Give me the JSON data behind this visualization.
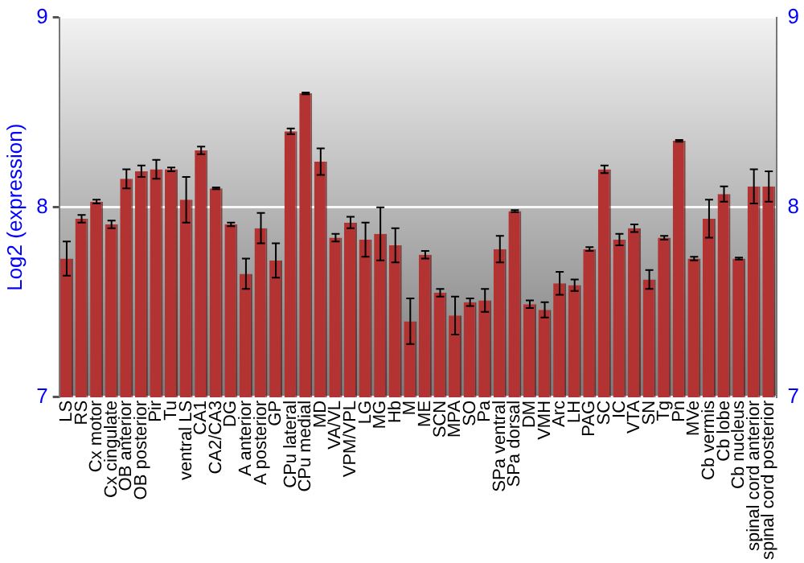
{
  "chart_data": {
    "type": "bar",
    "ylabel": "Log2 (expression)",
    "categories": [
      "LS",
      "RS",
      "Cx motor",
      "Cx cingulate",
      "OB anterior",
      "OB posterior",
      "Pir",
      "Tu",
      "ventral LS",
      "CA1",
      "CA2/CA3",
      "DG",
      "A anterior",
      "A posterior",
      "GP",
      "CPu lateral",
      "CPu medial",
      "MD",
      "VA/VL",
      "VPM/VPL",
      "LG",
      "MG",
      "Hb",
      "M",
      "ME",
      "SCN",
      "MPA",
      "SO",
      "Pa",
      "SPa ventral",
      "SPa dorsal",
      "DM",
      "VMH",
      "Arc",
      "LH",
      "PAG",
      "SC",
      "IC",
      "VTA",
      "SN",
      "Tg",
      "Pn",
      "MVe",
      "Cb vermis",
      "Cb lobe",
      "Cb nucleus",
      "spinal cord anterior",
      "spinal cord posterior"
    ],
    "values": [
      7.73,
      7.94,
      8.03,
      7.91,
      8.15,
      8.19,
      8.2,
      8.2,
      8.04,
      8.3,
      8.1,
      7.91,
      7.65,
      7.89,
      7.72,
      8.4,
      8.6,
      8.24,
      7.84,
      7.92,
      7.83,
      7.86,
      7.8,
      7.4,
      7.75,
      7.55,
      7.43,
      7.5,
      7.51,
      7.78,
      7.98,
      7.49,
      7.46,
      7.6,
      7.59,
      7.78,
      8.2,
      7.83,
      7.89,
      7.62,
      7.84,
      8.35,
      7.73,
      7.94,
      8.07,
      7.73,
      8.11,
      8.11
    ],
    "errors": [
      0.09,
      0.02,
      0.01,
      0.02,
      0.05,
      0.03,
      0.05,
      0.01,
      0.12,
      0.02,
      0.005,
      0.01,
      0.08,
      0.08,
      0.09,
      0.015,
      0.005,
      0.07,
      0.02,
      0.03,
      0.09,
      0.14,
      0.09,
      0.12,
      0.02,
      0.02,
      0.1,
      0.02,
      0.06,
      0.07,
      0.005,
      0.02,
      0.04,
      0.06,
      0.03,
      0.01,
      0.02,
      0.03,
      0.02,
      0.05,
      0.01,
      0.005,
      0.01,
      0.1,
      0.04,
      0.005,
      0.09,
      0.08
    ],
    "color": "#b33333",
    "ylim": [
      7,
      9
    ],
    "yticks": [
      7,
      8,
      9
    ],
    "y2lim": [
      7,
      9
    ],
    "y2ticks": [
      7,
      8,
      9
    ],
    "grid": "y",
    "legend": false
  }
}
